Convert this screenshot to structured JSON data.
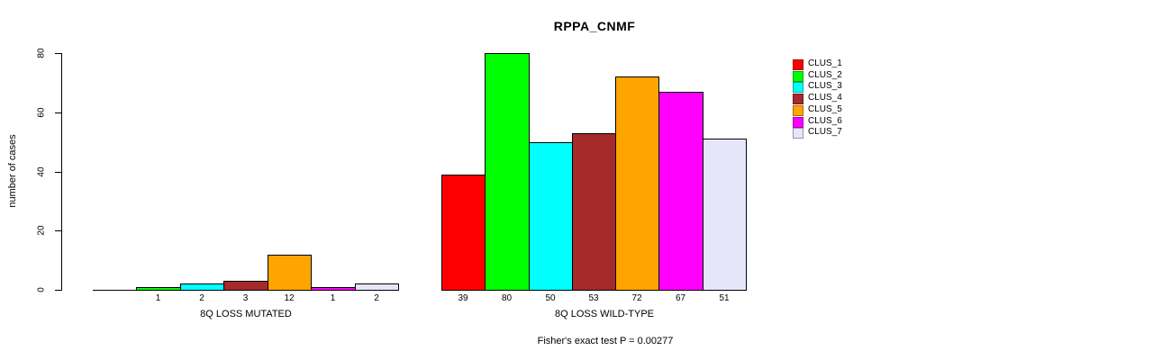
{
  "chart_data": {
    "type": "bar",
    "title": "RPPA_CNMF",
    "ylabel": "number of cases",
    "xlabel": "",
    "ylim": [
      0,
      80
    ],
    "yticks": [
      0,
      20,
      40,
      60,
      80
    ],
    "grid": false,
    "clusters": [
      "CLUS_1",
      "CLUS_2",
      "CLUS_3",
      "CLUS_4",
      "CLUS_5",
      "CLUS_6",
      "CLUS_7"
    ],
    "colors": [
      "#FF0000",
      "#00FF00",
      "#00FFFF",
      "#A52A2A",
      "#FFA500",
      "#FF00FF",
      "#E6E6FA"
    ],
    "groups": [
      {
        "label": "8Q LOSS MUTATED",
        "values": [
          0,
          1,
          2,
          3,
          12,
          1,
          2
        ],
        "bar_labels": [
          "",
          "1",
          "2",
          "3",
          "12",
          "1",
          "2"
        ]
      },
      {
        "label": "8Q LOSS WILD-TYPE",
        "values": [
          39,
          80,
          50,
          53,
          72,
          67,
          51
        ],
        "bar_labels": [
          "39",
          "80",
          "50",
          "53",
          "72",
          "67",
          "51"
        ]
      }
    ],
    "legend": {
      "position": "right",
      "entries": [
        "CLUS_1",
        "CLUS_2",
        "CLUS_3",
        "CLUS_4",
        "CLUS_5",
        "CLUS_6",
        "CLUS_7"
      ]
    },
    "annotation": "Fisher's exact test P = 0.00277"
  }
}
